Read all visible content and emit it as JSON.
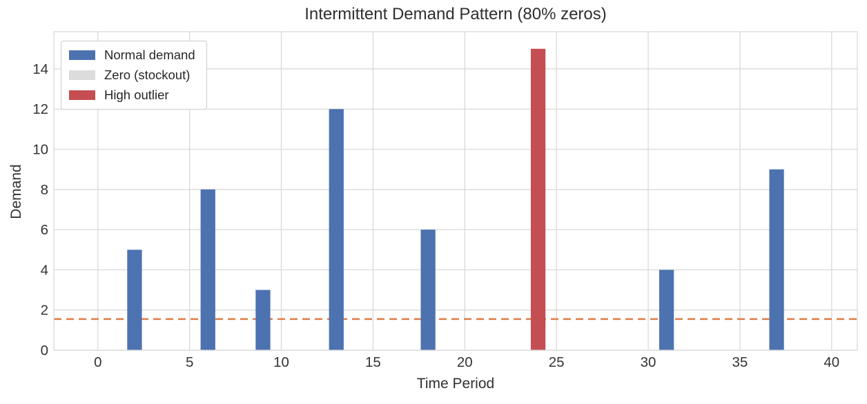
{
  "chart_data": {
    "type": "bar",
    "title": "Intermittent Demand Pattern (80% zeros)",
    "xlabel": "Time Period",
    "ylabel": "Demand",
    "n_periods": 40,
    "values": [
      0,
      0,
      5,
      0,
      0,
      0,
      8,
      0,
      0,
      3,
      0,
      0,
      0,
      12,
      0,
      0,
      0,
      0,
      6,
      0,
      0,
      0,
      0,
      0,
      15,
      0,
      0,
      0,
      0,
      0,
      0,
      4,
      0,
      0,
      0,
      0,
      0,
      9,
      0,
      0
    ],
    "bars": [
      {
        "x": 2,
        "value": 5,
        "series": "Normal demand"
      },
      {
        "x": 6,
        "value": 8,
        "series": "Normal demand"
      },
      {
        "x": 9,
        "value": 3,
        "series": "Normal demand"
      },
      {
        "x": 13,
        "value": 12,
        "series": "Normal demand"
      },
      {
        "x": 18,
        "value": 6,
        "series": "Normal demand"
      },
      {
        "x": 24,
        "value": 15,
        "series": "High outlier"
      },
      {
        "x": 31,
        "value": 4,
        "series": "Normal demand"
      },
      {
        "x": 37,
        "value": 9,
        "series": "Normal demand"
      }
    ],
    "bar_width": 0.8,
    "mean_line": {
      "value": 1.55,
      "color": "#DF814E",
      "style": "dashed"
    },
    "legend": [
      {
        "label": "Normal demand",
        "color": "#4C72B0"
      },
      {
        "label": "Zero (stockout)",
        "color": "#DCDCDC"
      },
      {
        "label": "High outlier",
        "color": "#C44E52"
      }
    ],
    "legend_position": "upper left",
    "x_ticks": [
      0,
      5,
      10,
      15,
      20,
      25,
      30,
      35,
      40
    ],
    "y_ticks": [
      0,
      2,
      4,
      6,
      8,
      10,
      12,
      14
    ],
    "xlim": [
      -2.4,
      41.4
    ],
    "ylim": [
      0,
      15.85
    ],
    "grid": true,
    "colors": {
      "grid": "#D9D9D9",
      "text": "#333333",
      "background": "#FFFFFF"
    }
  }
}
